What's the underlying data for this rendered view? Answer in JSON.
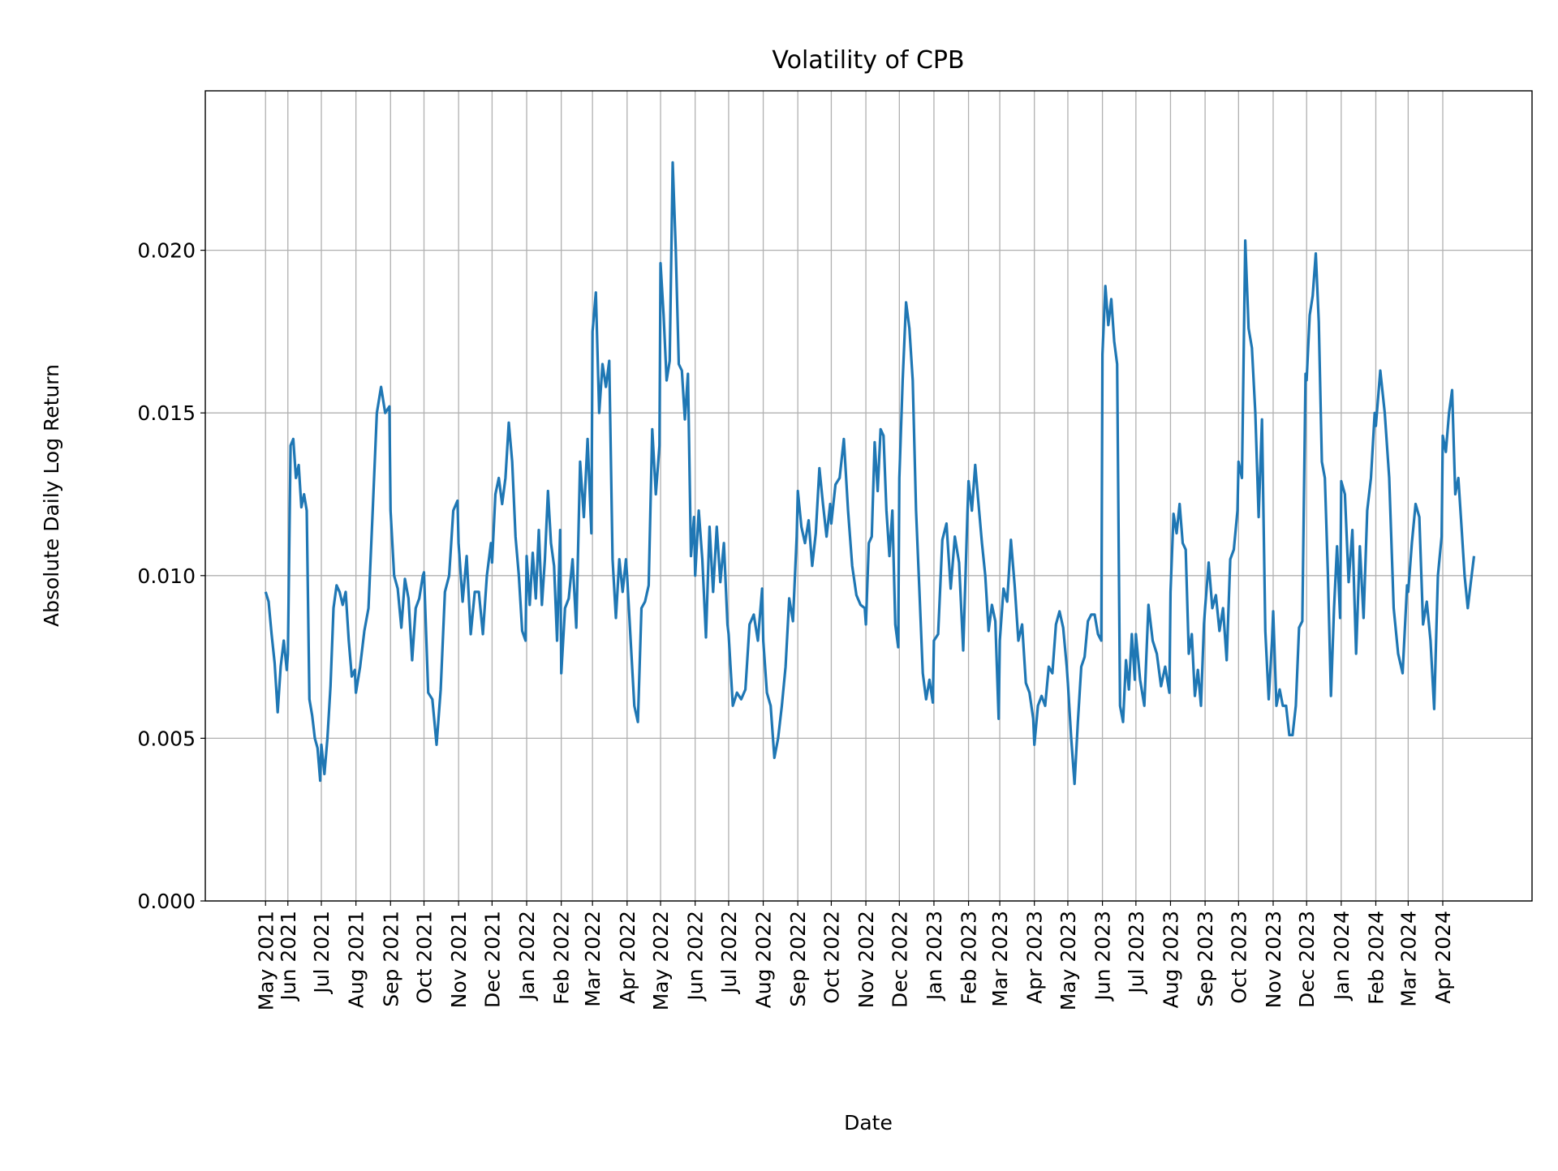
{
  "chart_data": {
    "type": "line",
    "title": "Volatility of CPB",
    "xlabel": "Date",
    "ylabel": "Absolute Daily Log Return",
    "ylim": [
      0,
      0.0249
    ],
    "xlim": [
      "2021-03-19",
      "2024-06-20"
    ],
    "grid": true,
    "line_color": "#1f77b4",
    "grid_color": "#b0b0b0",
    "yticks": [
      {
        "value": 0.0,
        "label": "0.000"
      },
      {
        "value": 0.005,
        "label": "0.005"
      },
      {
        "value": 0.01,
        "label": "0.010"
      },
      {
        "value": 0.015,
        "label": "0.015"
      },
      {
        "value": 0.02,
        "label": "0.020"
      }
    ],
    "xticks": [
      {
        "date": "2021-05-12",
        "label": "May 2021"
      },
      {
        "date": "2021-06-01",
        "label": "Jun 2021"
      },
      {
        "date": "2021-07-01",
        "label": "Jul 2021"
      },
      {
        "date": "2021-08-01",
        "label": "Aug 2021"
      },
      {
        "date": "2021-09-01",
        "label": "Sep 2021"
      },
      {
        "date": "2021-10-01",
        "label": "Oct 2021"
      },
      {
        "date": "2021-11-01",
        "label": "Nov 2021"
      },
      {
        "date": "2021-12-01",
        "label": "Dec 2021"
      },
      {
        "date": "2022-01-01",
        "label": "Jan 2022"
      },
      {
        "date": "2022-02-01",
        "label": "Feb 2022"
      },
      {
        "date": "2022-03-01",
        "label": "Mar 2022"
      },
      {
        "date": "2022-04-01",
        "label": "Apr 2022"
      },
      {
        "date": "2022-05-01",
        "label": "May 2022"
      },
      {
        "date": "2022-06-01",
        "label": "Jun 2022"
      },
      {
        "date": "2022-07-01",
        "label": "Jul 2022"
      },
      {
        "date": "2022-08-01",
        "label": "Aug 2022"
      },
      {
        "date": "2022-09-01",
        "label": "Sep 2022"
      },
      {
        "date": "2022-10-01",
        "label": "Oct 2022"
      },
      {
        "date": "2022-11-01",
        "label": "Nov 2022"
      },
      {
        "date": "2022-12-01",
        "label": "Dec 2022"
      },
      {
        "date": "2023-01-01",
        "label": "Jan 2023"
      },
      {
        "date": "2023-02-01",
        "label": "Feb 2023"
      },
      {
        "date": "2023-03-01",
        "label": "Mar 2023"
      },
      {
        "date": "2023-04-01",
        "label": "Apr 2023"
      },
      {
        "date": "2023-05-01",
        "label": "May 2023"
      },
      {
        "date": "2023-06-01",
        "label": "Jun 2023"
      },
      {
        "date": "2023-07-01",
        "label": "Jul 2023"
      },
      {
        "date": "2023-08-01",
        "label": "Aug 2023"
      },
      {
        "date": "2023-09-01",
        "label": "Sep 2023"
      },
      {
        "date": "2023-10-01",
        "label": "Oct 2023"
      },
      {
        "date": "2023-11-01",
        "label": "Nov 2023"
      },
      {
        "date": "2023-12-01",
        "label": "Dec 2023"
      },
      {
        "date": "2024-01-01",
        "label": "Jan 2024"
      },
      {
        "date": "2024-02-01",
        "label": "Feb 2024"
      },
      {
        "date": "2024-03-01",
        "label": "Mar 2024"
      },
      {
        "date": "2024-04-01",
        "label": "Apr 2024"
      }
    ],
    "series_by_period": [
      {
        "from": "2021-05-12",
        "to": "2021-05-31",
        "values": [
          0.0095,
          0.0092,
          0.0082,
          0.0073,
          0.0058,
          0.0072,
          0.008,
          0.0071
        ]
      },
      {
        "from": "2021-06-01",
        "to": "2021-06-30",
        "values": [
          0.0076,
          0.014,
          0.0142,
          0.013,
          0.0134,
          0.0121,
          0.0125,
          0.012,
          0.0062,
          0.0057,
          0.005,
          0.0047,
          0.0037
        ]
      },
      {
        "from": "2021-07-01",
        "to": "2021-07-31",
        "values": [
          0.0048,
          0.0039,
          0.005,
          0.0066,
          0.009,
          0.0097,
          0.0095,
          0.0091,
          0.0095,
          0.008,
          0.0069,
          0.0071
        ]
      },
      {
        "from": "2021-08-01",
        "to": "2021-08-31",
        "values": [
          0.0064,
          0.0072,
          0.0083,
          0.009,
          0.012,
          0.015,
          0.0158,
          0.015,
          0.0152
        ]
      },
      {
        "from": "2021-09-01",
        "to": "2021-09-30",
        "values": [
          0.012,
          0.01,
          0.0096,
          0.0084,
          0.0099,
          0.0093,
          0.0074,
          0.009,
          0.0093,
          0.01
        ]
      },
      {
        "from": "2021-10-01",
        "to": "2021-10-31",
        "values": [
          0.0101,
          0.0064,
          0.0062,
          0.0048,
          0.0065,
          0.0095,
          0.01,
          0.012,
          0.0123
        ]
      },
      {
        "from": "2021-11-01",
        "to": "2021-11-30",
        "values": [
          0.011,
          0.0092,
          0.0106,
          0.0082,
          0.0095,
          0.0095,
          0.0082,
          0.01,
          0.011
        ]
      },
      {
        "from": "2021-12-01",
        "to": "2021-12-31",
        "values": [
          0.0104,
          0.0125,
          0.013,
          0.0122,
          0.013,
          0.0147,
          0.0135,
          0.0112,
          0.01,
          0.0083,
          0.008
        ]
      },
      {
        "from": "2022-01-01",
        "to": "2022-01-31",
        "values": [
          0.0106,
          0.0091,
          0.0107,
          0.0093,
          0.0114,
          0.0091,
          0.0105,
          0.0126,
          0.011,
          0.0103,
          0.008,
          0.0114
        ]
      },
      {
        "from": "2022-02-01",
        "to": "2022-02-28",
        "values": [
          0.007,
          0.009,
          0.0093,
          0.0105,
          0.0084,
          0.0135,
          0.0118,
          0.0142,
          0.0113
        ]
      },
      {
        "from": "2022-03-01",
        "to": "2022-03-31",
        "values": [
          0.0175,
          0.0187,
          0.015,
          0.0165,
          0.0158,
          0.0166,
          0.0105,
          0.0087,
          0.0105,
          0.0095,
          0.0105
        ]
      },
      {
        "from": "2022-04-01",
        "to": "2022-04-30",
        "values": [
          0.01,
          0.008,
          0.006,
          0.0055,
          0.009,
          0.0092,
          0.0097,
          0.0145,
          0.0125,
          0.014
        ]
      },
      {
        "from": "2022-05-01",
        "to": "2022-05-31",
        "values": [
          0.0196,
          0.018,
          0.016,
          0.0166,
          0.0227,
          0.02,
          0.0165,
          0.0163,
          0.0148,
          0.0162,
          0.0106,
          0.0118
        ]
      },
      {
        "from": "2022-06-01",
        "to": "2022-06-30",
        "values": [
          0.01,
          0.012,
          0.0105,
          0.0081,
          0.0115,
          0.0095,
          0.0115,
          0.0098,
          0.011,
          0.0085
        ]
      },
      {
        "from": "2022-07-01",
        "to": "2022-07-31",
        "values": [
          0.0082,
          0.006,
          0.0064,
          0.0062,
          0.0065,
          0.0085,
          0.0088,
          0.008,
          0.0096
        ]
      },
      {
        "from": "2022-08-01",
        "to": "2022-08-31",
        "values": [
          0.008,
          0.0064,
          0.006,
          0.0044,
          0.005,
          0.006,
          0.0072,
          0.0093,
          0.0086,
          0.0112
        ]
      },
      {
        "from": "2022-09-01",
        "to": "2022-09-30",
        "values": [
          0.0126,
          0.0115,
          0.011,
          0.0117,
          0.0103,
          0.0113,
          0.0133,
          0.0122,
          0.0112,
          0.0122
        ]
      },
      {
        "from": "2022-10-01",
        "to": "2022-10-31",
        "values": [
          0.0116,
          0.0128,
          0.013,
          0.0142,
          0.012,
          0.0103,
          0.0094,
          0.0091,
          0.009
        ]
      },
      {
        "from": "2022-11-01",
        "to": "2022-11-30",
        "values": [
          0.0085,
          0.011,
          0.0112,
          0.0141,
          0.0126,
          0.0145,
          0.0143,
          0.012,
          0.0106,
          0.012,
          0.0085,
          0.0078
        ]
      },
      {
        "from": "2022-12-01",
        "to": "2022-12-31",
        "values": [
          0.013,
          0.016,
          0.0184,
          0.0176,
          0.016,
          0.012,
          0.0095,
          0.007,
          0.0062,
          0.0068,
          0.0061
        ]
      },
      {
        "from": "2023-01-01",
        "to": "2023-01-31",
        "values": [
          0.008,
          0.0082,
          0.0111,
          0.0116,
          0.0096,
          0.0112,
          0.0104,
          0.0077,
          0.0119
        ]
      },
      {
        "from": "2023-02-01",
        "to": "2023-02-28",
        "values": [
          0.0129,
          0.012,
          0.0134,
          0.0122,
          0.011,
          0.01,
          0.0083,
          0.0091,
          0.0086,
          0.0056
        ]
      },
      {
        "from": "2023-03-01",
        "to": "2023-03-31",
        "values": [
          0.008,
          0.0096,
          0.0092,
          0.0111,
          0.0097,
          0.008,
          0.0085,
          0.0067,
          0.0064,
          0.0056
        ]
      },
      {
        "from": "2023-04-01",
        "to": "2023-04-30",
        "values": [
          0.0048,
          0.006,
          0.0063,
          0.006,
          0.0072,
          0.007,
          0.0085,
          0.0089,
          0.0084,
          0.0072
        ]
      },
      {
        "from": "2023-05-01",
        "to": "2023-05-31",
        "values": [
          0.0067,
          0.005,
          0.0036,
          0.0055,
          0.0072,
          0.0075,
          0.0086,
          0.0088,
          0.0088,
          0.0082,
          0.008
        ]
      },
      {
        "from": "2023-06-01",
        "to": "2023-06-30",
        "values": [
          0.0168,
          0.0189,
          0.0177,
          0.0185,
          0.0172,
          0.0165,
          0.006,
          0.0055,
          0.0074,
          0.0065,
          0.0082,
          0.0068
        ]
      },
      {
        "from": "2023-07-01",
        "to": "2023-07-31",
        "values": [
          0.0082,
          0.0068,
          0.006,
          0.0091,
          0.008,
          0.0076,
          0.0066,
          0.0072,
          0.0064
        ]
      },
      {
        "from": "2023-08-01",
        "to": "2023-08-31",
        "values": [
          0.0095,
          0.0119,
          0.0113,
          0.0122,
          0.011,
          0.0108,
          0.0076,
          0.0082,
          0.0063,
          0.0071,
          0.006,
          0.0085
        ]
      },
      {
        "from": "2023-09-01",
        "to": "2023-09-30",
        "values": [
          0.009,
          0.0104,
          0.009,
          0.0094,
          0.0083,
          0.009,
          0.0074,
          0.0105,
          0.0108,
          0.012
        ]
      },
      {
        "from": "2023-10-01",
        "to": "2023-10-31",
        "values": [
          0.0135,
          0.013,
          0.0203,
          0.0176,
          0.017,
          0.015,
          0.0118,
          0.0148,
          0.0083,
          0.0062,
          0.008
        ]
      },
      {
        "from": "2023-11-01",
        "to": "2023-11-30",
        "values": [
          0.0089,
          0.006,
          0.0065,
          0.006,
          0.006,
          0.0051,
          0.0051,
          0.006,
          0.0084,
          0.0086,
          0.0162
        ]
      },
      {
        "from": "2023-12-01",
        "to": "2023-12-31",
        "values": [
          0.016,
          0.018,
          0.0186,
          0.0199,
          0.0178,
          0.0135,
          0.013,
          0.01,
          0.0063,
          0.009,
          0.0109,
          0.0087
        ]
      },
      {
        "from": "2024-01-01",
        "to": "2024-01-31",
        "values": [
          0.0129,
          0.0125,
          0.0098,
          0.0114,
          0.0076,
          0.0109,
          0.0087,
          0.012,
          0.013,
          0.015
        ]
      },
      {
        "from": "2024-02-01",
        "to": "2024-02-29",
        "values": [
          0.0146,
          0.0163,
          0.015,
          0.013,
          0.009,
          0.0076,
          0.007,
          0.0097
        ]
      },
      {
        "from": "2024-03-01",
        "to": "2024-03-31",
        "values": [
          0.0095,
          0.011,
          0.0122,
          0.0118,
          0.0085,
          0.0092,
          0.008,
          0.0059,
          0.01,
          0.0112
        ]
      },
      {
        "from": "2024-04-01",
        "to": "2024-04-29",
        "values": [
          0.0143,
          0.0138,
          0.015,
          0.0157,
          0.0125,
          0.013,
          0.0115,
          0.01,
          0.009,
          0.0098,
          0.0106
        ]
      }
    ]
  }
}
